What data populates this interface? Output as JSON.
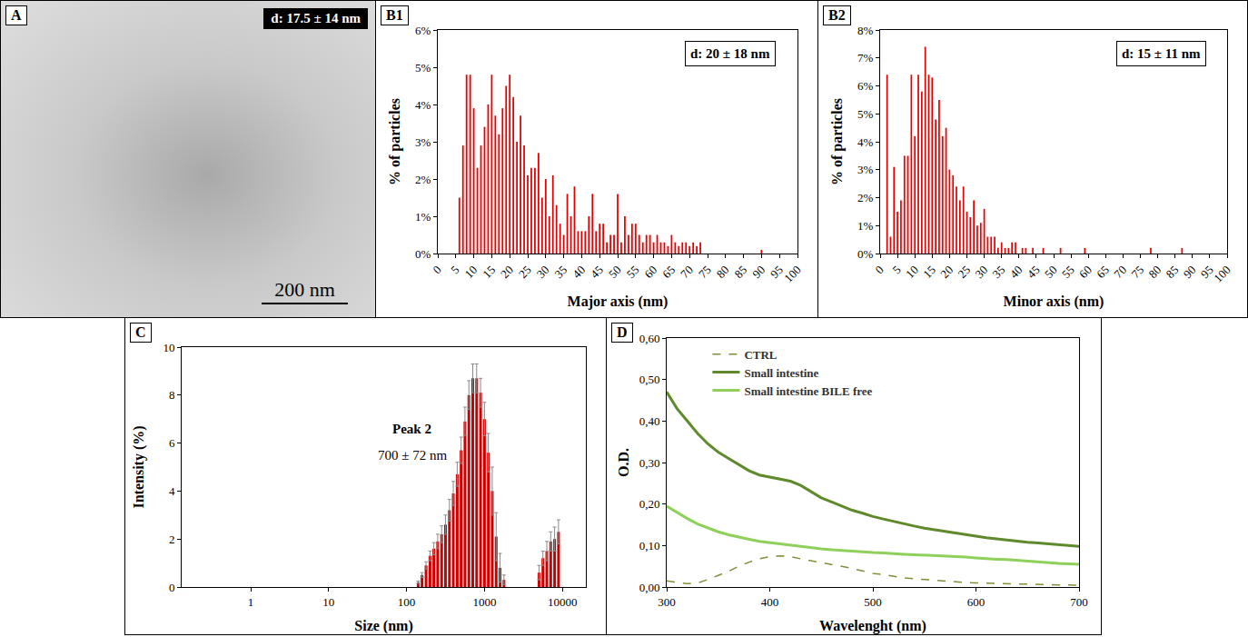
{
  "chart_data": [
    {
      "type": "image",
      "panel": "A",
      "annotations": [
        "d: 17.5 ± 14 nm"
      ],
      "scale_bar": {
        "value": 200,
        "label": "200 nm"
      }
    },
    {
      "type": "bar",
      "panel": "B1",
      "color": "#e60000",
      "xlabel": "Major axis (nm)",
      "ylabel": "% of particles",
      "annotations": [
        "d: 20 ± 18 nm"
      ],
      "grid": false,
      "x": [
        6,
        7,
        8,
        9,
        10,
        11,
        12,
        13,
        14,
        15,
        16,
        17,
        18,
        19,
        20,
        21,
        22,
        23,
        24,
        25,
        26,
        27,
        28,
        29,
        30,
        31,
        32,
        33,
        34,
        35,
        36,
        37,
        38,
        39,
        40,
        41,
        42,
        43,
        44,
        45,
        46,
        47,
        48,
        49,
        50,
        51,
        52,
        53,
        54,
        55,
        56,
        57,
        58,
        59,
        60,
        61,
        62,
        63,
        64,
        65,
        66,
        67,
        68,
        69,
        70,
        71,
        72,
        73,
        90
      ],
      "values": [
        1.5,
        2.9,
        4.8,
        4.8,
        3.9,
        2.3,
        2.9,
        3.4,
        4.0,
        4.8,
        3.7,
        3.2,
        3.9,
        4.5,
        4.8,
        4.2,
        3.0,
        3.7,
        2.9,
        2.1,
        2.3,
        2.3,
        2.7,
        1.5,
        2.0,
        1.0,
        2.1,
        1.3,
        0.8,
        0.5,
        1.6,
        1.0,
        1.8,
        0.6,
        0.6,
        0.6,
        1.0,
        1.6,
        0.6,
        0.8,
        0.8,
        0.3,
        0.5,
        0.5,
        1.6,
        0.3,
        1.0,
        0.5,
        0.8,
        0.8,
        0.5,
        0.3,
        0.5,
        0.5,
        0.3,
        0.5,
        0.3,
        0.3,
        0.2,
        0.5,
        0.3,
        0.2,
        0.3,
        0.3,
        0.2,
        0.3,
        0.2,
        0.3,
        0.1
      ],
      "xlim": [
        0,
        100
      ],
      "xticks": [
        0,
        5,
        10,
        15,
        20,
        25,
        30,
        35,
        40,
        45,
        50,
        55,
        60,
        65,
        70,
        75,
        80,
        85,
        90,
        95,
        100
      ],
      "ylim": [
        0,
        6
      ],
      "yticks": [
        {
          "value": 0,
          "label": "0%"
        },
        {
          "value": 1,
          "label": "1%"
        },
        {
          "value": 2,
          "label": "2%"
        },
        {
          "value": 3,
          "label": "3%"
        },
        {
          "value": 4,
          "label": "4%"
        },
        {
          "value": 5,
          "label": "5%"
        },
        {
          "value": 6,
          "label": "6%"
        }
      ]
    },
    {
      "type": "bar",
      "panel": "B2",
      "color": "#e60000",
      "xlabel": "Minor axis (nm)",
      "ylabel": "% of particles",
      "annotations": [
        "d: 15 ± 11 nm"
      ],
      "grid": false,
      "x": [
        2,
        3,
        4,
        5,
        6,
        7,
        8,
        9,
        10,
        11,
        12,
        13,
        14,
        15,
        16,
        17,
        18,
        19,
        20,
        21,
        22,
        23,
        24,
        25,
        26,
        27,
        28,
        29,
        30,
        31,
        32,
        33,
        34,
        35,
        36,
        37,
        38,
        39,
        41,
        42,
        44,
        47,
        52,
        59,
        78,
        87
      ],
      "values": [
        6.4,
        0.6,
        3.1,
        1.5,
        1.9,
        3.5,
        3.5,
        6.4,
        4.2,
        6.4,
        5.8,
        7.4,
        6.4,
        6.3,
        4.8,
        5.5,
        4.2,
        4.5,
        3.0,
        2.8,
        2.4,
        1.9,
        2.4,
        1.5,
        1.3,
        1.9,
        1.0,
        1.1,
        1.6,
        0.6,
        0.6,
        0.6,
        0.2,
        0.4,
        0.2,
        0.2,
        0.4,
        0.4,
        0.2,
        0.2,
        0.2,
        0.2,
        0.2,
        0.2,
        0.2,
        0.2
      ],
      "xlim": [
        0,
        100
      ],
      "xticks": [
        0,
        5,
        10,
        15,
        20,
        25,
        30,
        35,
        40,
        45,
        50,
        55,
        60,
        65,
        70,
        75,
        80,
        85,
        90,
        95,
        100
      ],
      "ylim": [
        0,
        8
      ],
      "yticks": [
        {
          "value": 0,
          "label": "0%"
        },
        {
          "value": 1,
          "label": "1%"
        },
        {
          "value": 2,
          "label": "2%"
        },
        {
          "value": 3,
          "label": "3%"
        },
        {
          "value": 4,
          "label": "4%"
        },
        {
          "value": 5,
          "label": "5%"
        },
        {
          "value": 6,
          "label": "6%"
        },
        {
          "value": 7,
          "label": "7%"
        },
        {
          "value": 8,
          "label": "8%"
        }
      ]
    },
    {
      "type": "bar",
      "panel": "C",
      "color": "#cc0000",
      "log": "x",
      "xlabel": "Size (nm)",
      "ylabel": "Intensity (%)",
      "annotations": [
        "Peak 2",
        "700 ± 72 nm"
      ],
      "grid": false,
      "x": [
        141,
        158,
        178,
        200,
        224,
        251,
        282,
        316,
        355,
        398,
        447,
        501,
        562,
        631,
        708,
        794,
        891,
        1000,
        1122,
        1259,
        1413,
        1585,
        1778,
        5012,
        5623,
        6310,
        7079,
        7943,
        8913
      ],
      "values": [
        0.2,
        0.5,
        0.9,
        1.3,
        1.6,
        1.9,
        2.2,
        2.6,
        3.2,
        3.9,
        4.7,
        5.7,
        6.9,
        8.0,
        8.7,
        8.7,
        8.1,
        7.0,
        5.6,
        4.0,
        2.1,
        0.8,
        0.3,
        0.6,
        1.2,
        1.5,
        1.9,
        2.0,
        2.3
      ],
      "errors": [
        0.05,
        0.1,
        0.15,
        0.2,
        0.25,
        0.3,
        0.35,
        0.4,
        0.45,
        0.5,
        0.5,
        0.55,
        0.6,
        0.6,
        0.6,
        0.6,
        0.6,
        0.7,
        0.8,
        1.0,
        1.0,
        0.6,
        0.2,
        0.3,
        0.3,
        0.4,
        0.4,
        0.5,
        0.5
      ],
      "xlim": [
        0.13,
        20000
      ],
      "xticks": [
        1,
        10,
        100,
        1000,
        10000
      ],
      "ylim": [
        0,
        10
      ],
      "yticks": [
        0,
        2,
        4,
        6,
        8,
        10
      ]
    },
    {
      "type": "line",
      "panel": "D",
      "xlabel": "Wavelenght (nm)",
      "ylabel": "O.D.",
      "legend": "top-left",
      "grid": false,
      "x": [
        300,
        310,
        320,
        330,
        340,
        350,
        360,
        370,
        380,
        390,
        400,
        410,
        420,
        430,
        440,
        450,
        460,
        470,
        480,
        490,
        500,
        510,
        520,
        530,
        540,
        550,
        560,
        570,
        580,
        590,
        600,
        610,
        620,
        630,
        640,
        650,
        660,
        670,
        680,
        690,
        700
      ],
      "series": [
        {
          "name": "CTRL",
          "color": "#7d8f3a",
          "line_style": "dash",
          "values": [
            0.015,
            0.012,
            0.008,
            0.01,
            0.018,
            0.028,
            0.038,
            0.05,
            0.06,
            0.068,
            0.073,
            0.075,
            0.073,
            0.068,
            0.063,
            0.058,
            0.054,
            0.05,
            0.044,
            0.038,
            0.033,
            0.03,
            0.026,
            0.022,
            0.02,
            0.018,
            0.016,
            0.014,
            0.012,
            0.011,
            0.01,
            0.009,
            0.008,
            0.008,
            0.007,
            0.007,
            0.006,
            0.006,
            0.005,
            0.005,
            0.004
          ]
        },
        {
          "name": "Small intestine",
          "color": "#5e8a2c",
          "line_style": "solid",
          "values": [
            0.47,
            0.43,
            0.4,
            0.37,
            0.345,
            0.325,
            0.31,
            0.295,
            0.28,
            0.27,
            0.265,
            0.26,
            0.255,
            0.245,
            0.23,
            0.215,
            0.205,
            0.195,
            0.185,
            0.178,
            0.17,
            0.164,
            0.158,
            0.152,
            0.147,
            0.142,
            0.138,
            0.134,
            0.13,
            0.126,
            0.122,
            0.119,
            0.116,
            0.113,
            0.11,
            0.108,
            0.106,
            0.104,
            0.102,
            0.1,
            0.098
          ]
        },
        {
          "name": "Small intestine BILE free",
          "color": "#8fd05a",
          "line_style": "solid",
          "values": [
            0.195,
            0.18,
            0.165,
            0.152,
            0.142,
            0.133,
            0.126,
            0.12,
            0.115,
            0.11,
            0.107,
            0.104,
            0.1,
            0.098,
            0.095,
            0.092,
            0.09,
            0.088,
            0.086,
            0.084,
            0.083,
            0.082,
            0.08,
            0.079,
            0.078,
            0.077,
            0.076,
            0.074,
            0.073,
            0.072,
            0.07,
            0.068,
            0.067,
            0.066,
            0.064,
            0.062,
            0.06,
            0.058,
            0.057,
            0.056,
            0.055
          ]
        }
      ],
      "xlim": [
        300,
        700
      ],
      "xticks": [
        300,
        400,
        500,
        600,
        700
      ],
      "ylim": [
        0,
        0.6
      ],
      "yticks": [
        {
          "value": 0,
          "label": "0,00"
        },
        {
          "value": 0.1,
          "label": "0,10"
        },
        {
          "value": 0.2,
          "label": "0,20"
        },
        {
          "value": 0.3,
          "label": "0,30"
        },
        {
          "value": 0.4,
          "label": "0,40"
        },
        {
          "value": 0.5,
          "label": "0,50"
        },
        {
          "value": 0.6,
          "label": "0,60"
        }
      ]
    }
  ]
}
